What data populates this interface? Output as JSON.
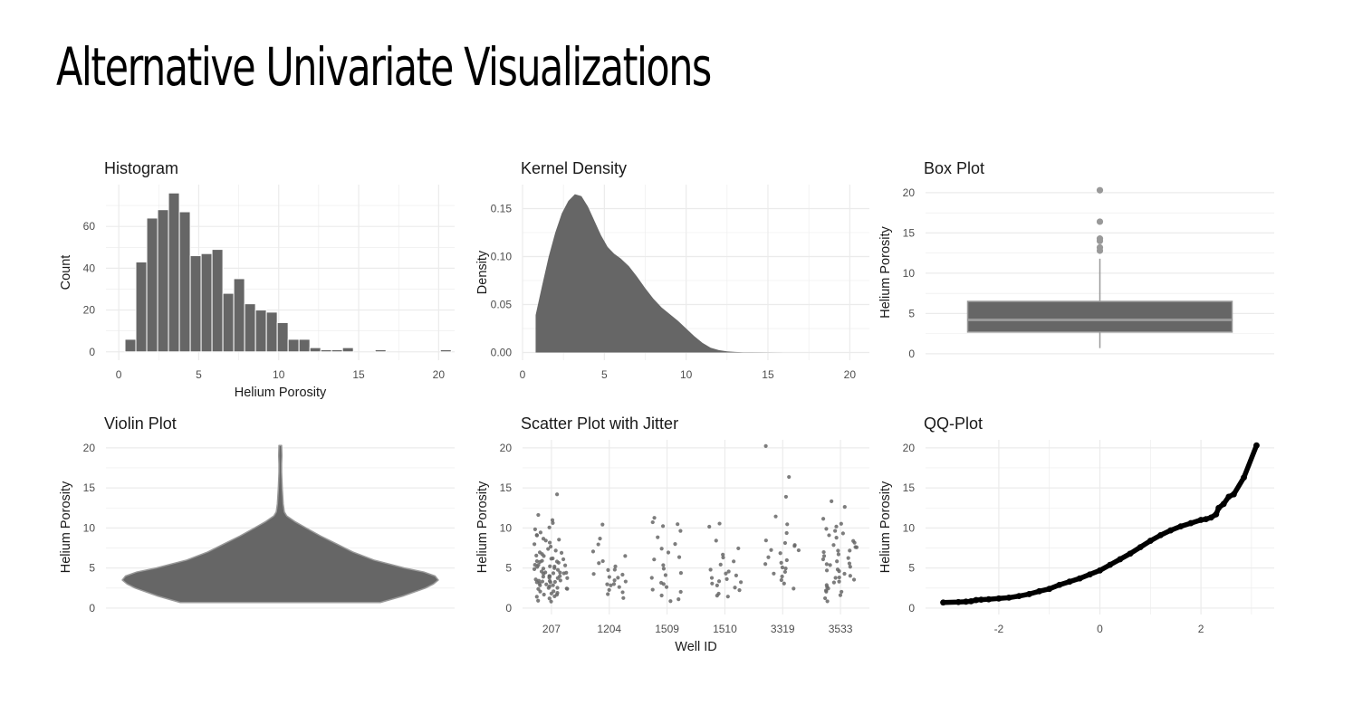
{
  "page": {
    "title": "Alternative Univariate Visualizations"
  },
  "colors": {
    "fill": "#666666",
    "outline": "#999999",
    "grid": "#ebebeb",
    "point": "#000000"
  },
  "chart_data": [
    {
      "id": "histogram",
      "type": "bar",
      "title": "Histogram",
      "xlabel": "Helium Porosity",
      "ylabel": "Count",
      "xlim": [
        -0.8,
        21.0
      ],
      "ylim": [
        -4,
        80
      ],
      "xticks": [
        0,
        5,
        10,
        15,
        20
      ],
      "yticks": [
        0,
        20,
        40,
        60
      ],
      "bin_width": 0.68,
      "bins": [
        {
          "x": 0.73,
          "count": 6
        },
        {
          "x": 1.41,
          "count": 43
        },
        {
          "x": 2.09,
          "count": 64
        },
        {
          "x": 2.77,
          "count": 68
        },
        {
          "x": 3.45,
          "count": 76
        },
        {
          "x": 4.13,
          "count": 67
        },
        {
          "x": 4.81,
          "count": 46
        },
        {
          "x": 5.49,
          "count": 47
        },
        {
          "x": 6.17,
          "count": 49
        },
        {
          "x": 6.85,
          "count": 28
        },
        {
          "x": 7.53,
          "count": 35
        },
        {
          "x": 8.21,
          "count": 23
        },
        {
          "x": 8.89,
          "count": 20
        },
        {
          "x": 9.57,
          "count": 19
        },
        {
          "x": 10.25,
          "count": 14
        },
        {
          "x": 10.93,
          "count": 6
        },
        {
          "x": 11.61,
          "count": 6
        },
        {
          "x": 12.29,
          "count": 2
        },
        {
          "x": 12.97,
          "count": 1
        },
        {
          "x": 13.65,
          "count": 1
        },
        {
          "x": 14.33,
          "count": 2
        },
        {
          "x": 16.37,
          "count": 1
        },
        {
          "x": 20.45,
          "count": 1
        }
      ]
    },
    {
      "id": "kernel-density",
      "type": "area",
      "title": "Kernel Density",
      "xlabel": "",
      "ylabel": "Density",
      "xlim": [
        0,
        21.2
      ],
      "ylim": [
        -0.008,
        0.175
      ],
      "xticks": [
        0,
        5,
        10,
        15,
        20
      ],
      "yticks": [
        0,
        0.05,
        0.1,
        0.15
      ],
      "ytick_labels": [
        "0.00",
        "0.05",
        "0.10",
        "0.15"
      ],
      "x": [
        0.8,
        1.2,
        1.6,
        2.0,
        2.4,
        2.8,
        3.2,
        3.6,
        4.0,
        4.4,
        4.8,
        5.2,
        5.6,
        6.0,
        6.5,
        7.0,
        7.5,
        8.0,
        8.5,
        9.0,
        9.5,
        10.0,
        10.5,
        11.0,
        11.5,
        12.0,
        12.5,
        13.0,
        13.5,
        14.0,
        15.0,
        16.0
      ],
      "y": [
        0.039,
        0.07,
        0.1,
        0.125,
        0.145,
        0.158,
        0.165,
        0.163,
        0.152,
        0.137,
        0.122,
        0.11,
        0.103,
        0.098,
        0.09,
        0.079,
        0.067,
        0.056,
        0.047,
        0.04,
        0.033,
        0.025,
        0.017,
        0.01,
        0.005,
        0.0025,
        0.0012,
        0.0006,
        0.0003,
        0.0002,
        0.0001,
        0.0
      ]
    },
    {
      "id": "box-plot",
      "type": "box",
      "title": "Box Plot",
      "xlabel": "",
      "ylabel": "Helium Porosity",
      "ylim": [
        -0.8,
        21.0
      ],
      "yticks": [
        0,
        5,
        10,
        15,
        20
      ],
      "box": {
        "min": 0.7,
        "q1": 2.7,
        "median": 4.2,
        "q3": 6.5,
        "max": 11.8
      },
      "outliers": [
        12.8,
        13.2,
        14.0,
        14.3,
        16.4,
        20.3
      ]
    },
    {
      "id": "violin-plot",
      "type": "violin",
      "title": "Violin Plot",
      "xlabel": "",
      "ylabel": "Helium Porosity",
      "ylim": [
        -0.8,
        21.0
      ],
      "yticks": [
        0,
        5,
        10,
        15,
        20
      ],
      "y": [
        0.7,
        1.5,
        2.5,
        3.0,
        3.5,
        4.0,
        4.5,
        5.0,
        6.0,
        7.0,
        8.0,
        9.0,
        10.0,
        10.8,
        11.5,
        12.0,
        13.0,
        14.0,
        15.0,
        16.0,
        17.0,
        18.0,
        19.0,
        20.3
      ],
      "half_width": [
        0.62,
        0.76,
        0.9,
        0.95,
        0.98,
        0.96,
        0.89,
        0.77,
        0.58,
        0.45,
        0.35,
        0.25,
        0.16,
        0.09,
        0.04,
        0.025,
        0.018,
        0.015,
        0.012,
        0.01,
        0.008,
        0.008,
        0.01,
        0.008
      ]
    },
    {
      "id": "scatter-jitter",
      "type": "scatter",
      "title": "Scatter Plot with Jitter",
      "xlabel": "Well ID",
      "ylabel": "Helium Porosity",
      "ylim": [
        -0.8,
        21.0
      ],
      "yticks": [
        0,
        5,
        10,
        15,
        20
      ],
      "categories": [
        "207",
        "1204",
        "1509",
        "1510",
        "3319",
        "3533"
      ],
      "groups": [
        {
          "well": "207",
          "values": [
            0.8,
            1.0,
            1.2,
            1.3,
            1.5,
            1.6,
            1.8,
            1.9,
            2.0,
            2.1,
            2.2,
            2.3,
            2.4,
            2.5,
            2.5,
            2.6,
            2.7,
            2.8,
            2.9,
            3.0,
            3.0,
            3.1,
            3.2,
            3.3,
            3.3,
            3.4,
            3.5,
            3.5,
            3.6,
            3.7,
            3.8,
            3.8,
            3.9,
            4.0,
            4.0,
            4.1,
            4.2,
            4.2,
            4.3,
            4.4,
            4.5,
            4.5,
            4.6,
            4.7,
            4.8,
            4.9,
            5.0,
            5.0,
            5.1,
            5.2,
            5.3,
            5.4,
            5.5,
            5.6,
            5.7,
            5.8,
            5.9,
            6.0,
            6.1,
            6.2,
            6.3,
            6.5,
            6.6,
            6.8,
            7.0,
            7.1,
            7.3,
            7.5,
            7.7,
            7.9,
            8.1,
            8.3,
            8.5,
            8.7,
            9.0,
            9.2,
            9.5,
            9.8,
            10.1,
            10.5,
            11.0,
            11.5,
            14.2
          ]
        },
        {
          "well": "1204",
          "values": [
            1.2,
            1.6,
            2.0,
            2.2,
            2.5,
            2.7,
            2.9,
            3.1,
            3.3,
            3.5,
            3.7,
            3.9,
            4.1,
            4.3,
            4.6,
            4.9,
            5.3,
            5.6,
            6.0,
            6.5,
            7.1,
            7.9,
            8.6,
            10.3
          ]
        },
        {
          "well": "1509",
          "values": [
            0.9,
            1.2,
            1.6,
            2.0,
            2.4,
            2.7,
            3.0,
            3.3,
            3.7,
            4.1,
            4.5,
            5.0,
            5.5,
            6.0,
            6.5,
            7.0,
            7.5,
            8.0,
            8.8,
            9.5,
            10.1,
            10.5,
            10.8,
            11.2
          ]
        },
        {
          "well": "1510",
          "values": [
            1.3,
            1.6,
            1.9,
            2.2,
            2.5,
            2.8,
            3.0,
            3.2,
            3.4,
            3.6,
            3.8,
            4.0,
            4.3,
            4.6,
            4.9,
            5.3,
            5.7,
            6.2,
            6.8,
            7.5,
            8.5,
            10.2,
            10.4
          ]
        },
        {
          "well": "3319",
          "values": [
            2.4,
            3.2,
            3.6,
            4.0,
            4.3,
            4.6,
            4.9,
            5.2,
            5.5,
            5.8,
            6.1,
            6.4,
            6.8,
            7.1,
            7.4,
            7.6,
            7.8,
            8.0,
            8.5,
            9.5,
            10.5,
            11.3,
            14.0,
            16.3,
            20.3
          ]
        },
        {
          "well": "3533",
          "values": [
            0.9,
            1.3,
            1.6,
            1.9,
            2.1,
            2.3,
            2.5,
            2.7,
            2.9,
            3.1,
            3.3,
            3.5,
            3.7,
            3.9,
            4.1,
            4.3,
            4.5,
            4.7,
            4.9,
            5.1,
            5.3,
            5.5,
            5.7,
            5.9,
            6.1,
            6.3,
            6.5,
            6.7,
            6.9,
            7.1,
            7.3,
            7.5,
            7.7,
            7.9,
            8.1,
            8.4,
            8.7,
            9.0,
            9.3,
            9.6,
            9.9,
            10.3,
            10.6,
            11.0,
            12.7,
            13.2
          ]
        }
      ]
    },
    {
      "id": "qq-plot",
      "type": "scatter",
      "title": "QQ-Plot",
      "xlabel": "",
      "ylabel": "Helium Porosity",
      "xlim": [
        -3.45,
        3.45
      ],
      "ylim": [
        -0.8,
        21.0
      ],
      "xticks": [
        -2,
        0,
        2
      ],
      "yticks": [
        0,
        5,
        10,
        15,
        20
      ],
      "theoretical": [
        -3.1,
        -2.8,
        -2.65,
        -2.55,
        -2.45,
        -2.35,
        -2.2,
        -2.0,
        -1.8,
        -1.6,
        -1.4,
        -1.2,
        -1.0,
        -0.8,
        -0.6,
        -0.4,
        -0.2,
        0.0,
        0.2,
        0.4,
        0.6,
        0.8,
        1.0,
        1.2,
        1.4,
        1.6,
        1.8,
        2.0,
        2.1,
        2.2,
        2.3,
        2.35,
        2.45,
        2.55,
        2.65,
        2.85,
        3.1
      ],
      "sample": [
        0.7,
        0.75,
        0.8,
        0.85,
        1.0,
        1.05,
        1.1,
        1.2,
        1.3,
        1.5,
        1.75,
        2.1,
        2.4,
        2.9,
        3.3,
        3.7,
        4.2,
        4.7,
        5.4,
        6.1,
        6.8,
        7.6,
        8.4,
        9.1,
        9.7,
        10.2,
        10.6,
        11.0,
        11.1,
        11.3,
        11.7,
        12.5,
        13.0,
        13.9,
        14.2,
        16.3,
        20.3
      ]
    }
  ]
}
